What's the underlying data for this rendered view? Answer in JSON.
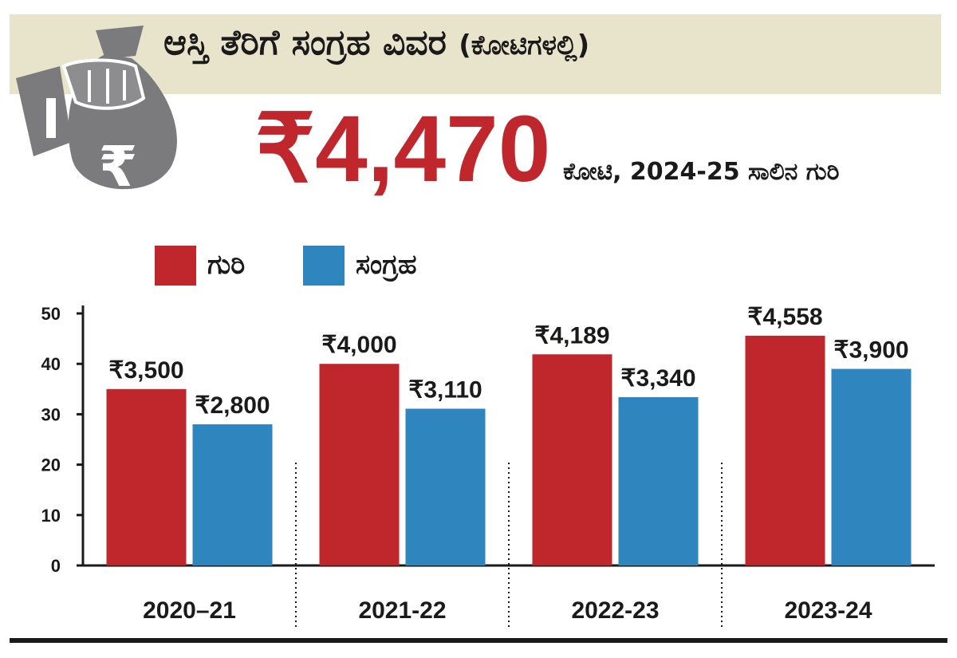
{
  "header": {
    "title": "ಆಸ್ತಿ ತೆರಿಗೆ ಸಂಗ್ರಹ ವಿವರ",
    "title_unit": "(ಕೋಟಿಗಳಲ್ಲಿ)",
    "icon": "money-bag-rupee-icon",
    "icon_symbol": "₹"
  },
  "highlight": {
    "value": "₹4,470",
    "caption": "ಕೋಟಿ, 2024-25 ಸಾಲಿನ ಗುರಿ"
  },
  "colors": {
    "target": "#c0272d",
    "collection": "#2f86bf",
    "band": "#e8e4cc",
    "icon": "#7b7b7d"
  },
  "chart_data": {
    "type": "bar",
    "categories": [
      "2020–21",
      "2021-22",
      "2022-23",
      "2023-24"
    ],
    "series": [
      {
        "name": "ಗುರಿ",
        "values": [
          35.0,
          40.0,
          41.89,
          45.58
        ],
        "labels": [
          "₹3,500",
          "₹4,000",
          "₹4,189",
          "₹4,558"
        ]
      },
      {
        "name": "ಸಂಗ್ರಹ",
        "values": [
          28.0,
          31.1,
          33.4,
          39.0
        ],
        "labels": [
          "₹2,800",
          "₹3,110",
          "₹3,340",
          "₹3,900"
        ]
      }
    ],
    "yticks": [
      "0",
      "10",
      "20",
      "30",
      "40",
      "50"
    ],
    "ylim": [
      0,
      50
    ],
    "legend": "top-left",
    "grid": false
  }
}
